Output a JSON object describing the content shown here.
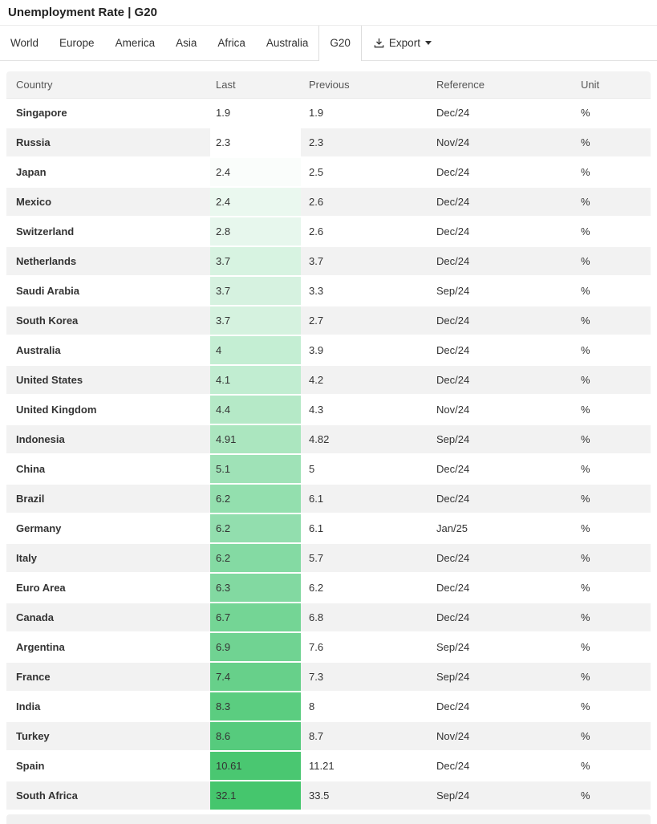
{
  "header": {
    "title": "Unemployment Rate | G20"
  },
  "nav": {
    "tabs": [
      {
        "label": "World",
        "active": false
      },
      {
        "label": "Europe",
        "active": false
      },
      {
        "label": "America",
        "active": false
      },
      {
        "label": "Asia",
        "active": false
      },
      {
        "label": "Africa",
        "active": false
      },
      {
        "label": "Australia",
        "active": false
      },
      {
        "label": "G20",
        "active": true
      }
    ],
    "export_label": "Export",
    "export_icon": "download-icon",
    "export_caret_icon": "caret-down-icon"
  },
  "table": {
    "columns": [
      "Country",
      "Last",
      "Previous",
      "Reference",
      "Unit"
    ],
    "heatmap_note": "Last column cells shaded white-to-green by value",
    "rows": [
      {
        "country": "Singapore",
        "last": "1.9",
        "previous": "1.9",
        "reference": "Dec/24",
        "unit": "%",
        "last_bg": "#ffffff"
      },
      {
        "country": "Russia",
        "last": "2.3",
        "previous": "2.3",
        "reference": "Nov/24",
        "unit": "%",
        "last_bg": "#ffffff"
      },
      {
        "country": "Japan",
        "last": "2.4",
        "previous": "2.5",
        "reference": "Dec/24",
        "unit": "%",
        "last_bg": "#fafdfb"
      },
      {
        "country": "Mexico",
        "last": "2.4",
        "previous": "2.6",
        "reference": "Dec/24",
        "unit": "%",
        "last_bg": "#eaf8ef"
      },
      {
        "country": "Switzerland",
        "last": "2.8",
        "previous": "2.6",
        "reference": "Dec/24",
        "unit": "%",
        "last_bg": "#e7f7ed"
      },
      {
        "country": "Netherlands",
        "last": "3.7",
        "previous": "3.7",
        "reference": "Dec/24",
        "unit": "%",
        "last_bg": "#d7f3e1"
      },
      {
        "country": "Saudi Arabia",
        "last": "3.7",
        "previous": "3.3",
        "reference": "Sep/24",
        "unit": "%",
        "last_bg": "#d6f2e0"
      },
      {
        "country": "South Korea",
        "last": "3.7",
        "previous": "2.7",
        "reference": "Dec/24",
        "unit": "%",
        "last_bg": "#d5f2df"
      },
      {
        "country": "Australia",
        "last": "4",
        "previous": "3.9",
        "reference": "Dec/24",
        "unit": "%",
        "last_bg": "#c4eed3"
      },
      {
        "country": "United States",
        "last": "4.1",
        "previous": "4.2",
        "reference": "Dec/24",
        "unit": "%",
        "last_bg": "#c1edd1"
      },
      {
        "country": "United Kingdom",
        "last": "4.4",
        "previous": "4.3",
        "reference": "Nov/24",
        "unit": "%",
        "last_bg": "#b5e9c7"
      },
      {
        "country": "Indonesia",
        "last": "4.91",
        "previous": "4.82",
        "reference": "Sep/24",
        "unit": "%",
        "last_bg": "#abe6bf"
      },
      {
        "country": "China",
        "last": "5.1",
        "previous": "5",
        "reference": "Dec/24",
        "unit": "%",
        "last_bg": "#9fe2b7"
      },
      {
        "country": "Brazil",
        "last": "6.2",
        "previous": "6.1",
        "reference": "Dec/24",
        "unit": "%",
        "last_bg": "#93dfae"
      },
      {
        "country": "Germany",
        "last": "6.2",
        "previous": "6.1",
        "reference": "Jan/25",
        "unit": "%",
        "last_bg": "#92deae"
      },
      {
        "country": "Italy",
        "last": "6.2",
        "previous": "5.7",
        "reference": "Dec/24",
        "unit": "%",
        "last_bg": "#84daa3"
      },
      {
        "country": "Euro Area",
        "last": "6.3",
        "previous": "6.2",
        "reference": "Dec/24",
        "unit": "%",
        "last_bg": "#82d9a1"
      },
      {
        "country": "Canada",
        "last": "6.7",
        "previous": "6.8",
        "reference": "Dec/24",
        "unit": "%",
        "last_bg": "#74d595"
      },
      {
        "country": "Argentina",
        "last": "6.9",
        "previous": "7.6",
        "reference": "Sep/24",
        "unit": "%",
        "last_bg": "#70d392"
      },
      {
        "country": "France",
        "last": "7.4",
        "previous": "7.3",
        "reference": "Sep/24",
        "unit": "%",
        "last_bg": "#67d08a"
      },
      {
        "country": "India",
        "last": "8.3",
        "previous": "8",
        "reference": "Dec/24",
        "unit": "%",
        "last_bg": "#5bcd80"
      },
      {
        "country": "Turkey",
        "last": "8.6",
        "previous": "8.7",
        "reference": "Nov/24",
        "unit": "%",
        "last_bg": "#56cb7d"
      },
      {
        "country": "Spain",
        "last": "10.61",
        "previous": "11.21",
        "reference": "Dec/24",
        "unit": "%",
        "last_bg": "#4ac771"
      },
      {
        "country": "South Africa",
        "last": "32.1",
        "previous": "33.5",
        "reference": "Sep/24",
        "unit": "%",
        "last_bg": "#45c66d"
      }
    ]
  },
  "colors": {
    "heatmap_min": "#ffffff",
    "heatmap_max": "#45c66d",
    "stripe_row_bg": "#f2f2f2",
    "header_bg": "#f3f3f3"
  }
}
